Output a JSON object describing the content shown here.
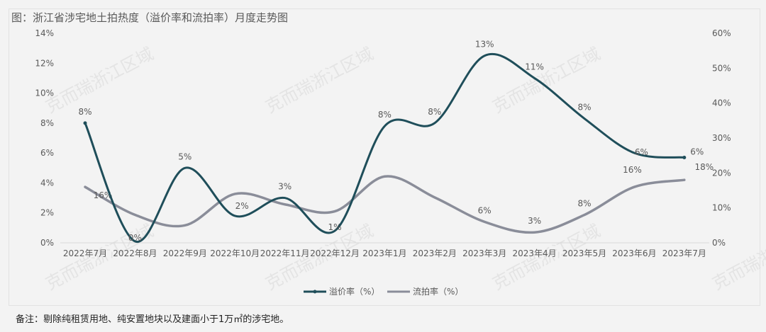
{
  "chart_data": {
    "type": "line",
    "title": "图：浙江省涉宅地土拍热度（溢价率和流拍率）月度走势图",
    "categories": [
      "2022年7月",
      "2022年8月",
      "2022年9月",
      "2022年10月",
      "2022年11月",
      "2022年12月",
      "2023年1月",
      "2023年2月",
      "2023年3月",
      "2023年4月",
      "2023年5月",
      "2023年6月",
      "2023年7月"
    ],
    "y_left": {
      "ylim": [
        0,
        14
      ],
      "ticks": [
        "0%",
        "2%",
        "4%",
        "6%",
        "8%",
        "10%",
        "12%",
        "14%"
      ],
      "tick_values": [
        0,
        2,
        4,
        6,
        8,
        10,
        12,
        14
      ]
    },
    "y_right": {
      "ylim": [
        0,
        60
      ],
      "ticks": [
        "0%",
        "10%",
        "20%",
        "30%",
        "40%",
        "50%",
        "60%"
      ],
      "tick_values": [
        0,
        10,
        20,
        30,
        40,
        50,
        60
      ]
    },
    "series": [
      {
        "name": "溢价率（%）",
        "axis": "left",
        "color": "#1f4e5a",
        "values": [
          8.0,
          0.1,
          5.0,
          1.8,
          3.0,
          0.8,
          7.8,
          8.0,
          12.5,
          11.0,
          8.3,
          6.0,
          5.7
        ],
        "labels": [
          "8%",
          "0%",
          "5%",
          "2%",
          "3%",
          "1%",
          "8%",
          "8%",
          "13%",
          "11%",
          "8%",
          "6%",
          "6%"
        ]
      },
      {
        "name": "流拍率（%）",
        "axis": "right",
        "color": "#8a8d99",
        "values": [
          16,
          8,
          5,
          14,
          11,
          9,
          19,
          13,
          6,
          3,
          8,
          16,
          18
        ],
        "labels": [
          "16%",
          "",
          "",
          "",
          "",
          "",
          "",
          "",
          "6%",
          "3%",
          "8%",
          "16%",
          "18%"
        ]
      }
    ],
    "legend": "bottom",
    "grid": false
  },
  "watermark": "克而瑞浙江区域",
  "note": "备注：剔除纯租赁用地、纯安置地块以及建面小于1万㎡的涉宅地。"
}
